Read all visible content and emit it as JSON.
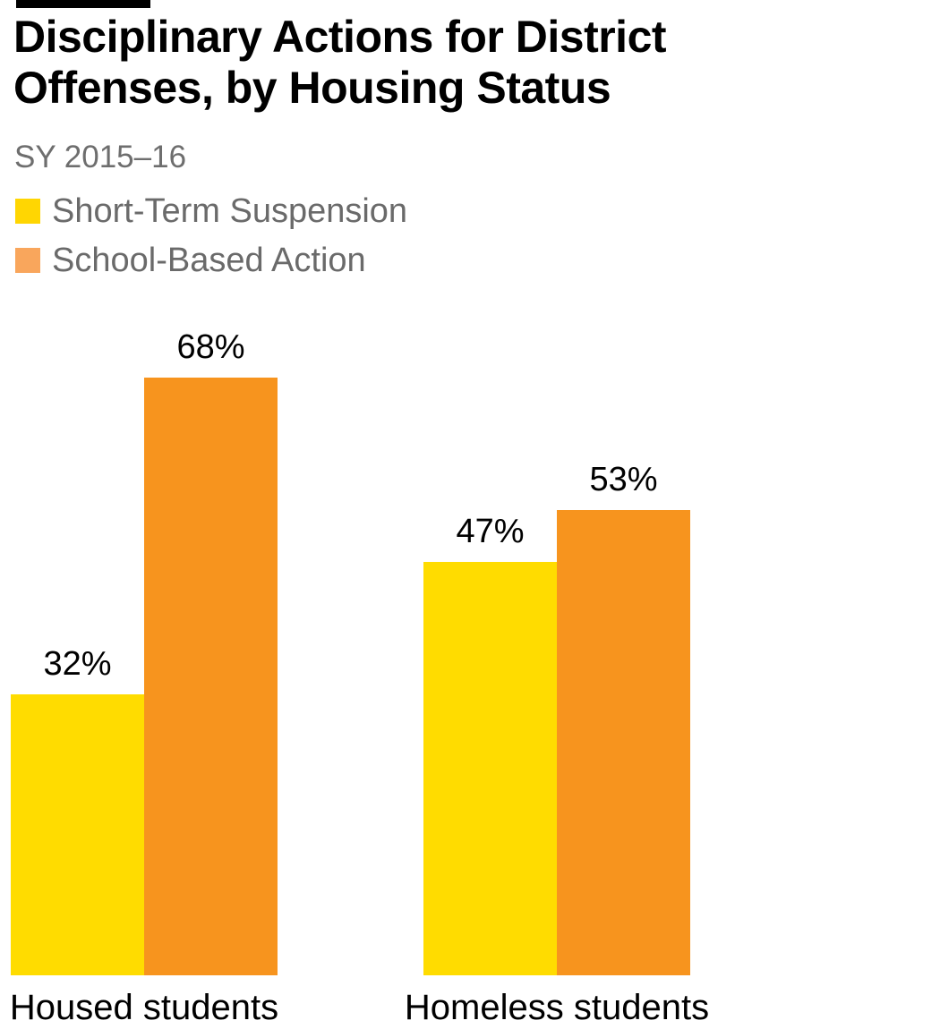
{
  "header": {
    "accent_bar_color": "#000000",
    "title_line1": "Disciplinary Actions for District",
    "title_line2": "Offenses, by Housing Status",
    "subtitle": "SY 2015–16"
  },
  "legend": {
    "items": [
      {
        "label": "Short-Term Suspension",
        "color": "#FFD602"
      },
      {
        "label": "School-Based Action",
        "color": "#F9A65C"
      }
    ]
  },
  "chart_data": {
    "type": "bar",
    "title": "Disciplinary Actions for District Offenses, by Housing Status",
    "subtitle": "SY 2015–16",
    "categories": [
      "Housed students",
      "Homeless students"
    ],
    "series": [
      {
        "name": "Short-Term Suspension",
        "color": "#FFDC00",
        "values": [
          32,
          47
        ]
      },
      {
        "name": "School-Based Action",
        "color": "#F7941E",
        "values": [
          68,
          53
        ]
      }
    ],
    "value_labels": [
      [
        "32%",
        "68%"
      ],
      [
        "47%",
        "53%"
      ]
    ],
    "xlabel": "",
    "ylabel": "",
    "ylim": [
      0,
      100
    ],
    "grid": false,
    "axes_shown": false,
    "legend_position": "top-left"
  }
}
